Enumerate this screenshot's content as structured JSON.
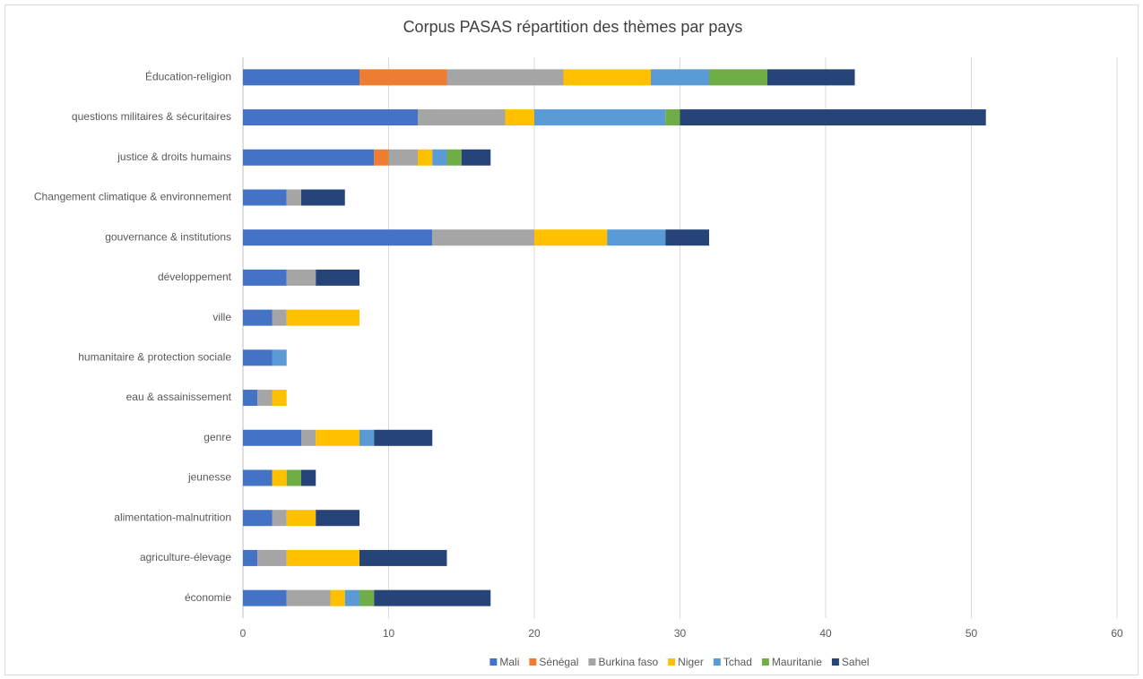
{
  "chart_data": {
    "type": "stacked-barh",
    "title": "Corpus PASAS répartition des thèmes par pays",
    "categories": [
      "Éducation-religion",
      "questions militaires & sécuritaires",
      "justice & droits humains",
      "Changement climatique & environnement",
      "gouvernance & institutions",
      "développement",
      "ville",
      "humanitaire & protection sociale",
      "eau & assainissement",
      "genre",
      "jeunesse",
      "alimentation-malnutrition",
      "agriculture-élevage",
      "économie"
    ],
    "series": [
      {
        "name": "Mali",
        "color": "#4472c4",
        "values": [
          8,
          12,
          9,
          3,
          13,
          3,
          2,
          2,
          1,
          4,
          2,
          2,
          1,
          3
        ]
      },
      {
        "name": "Sénégal",
        "color": "#ed7d31",
        "values": [
          6,
          0,
          1,
          0,
          0,
          0,
          0,
          0,
          0,
          0,
          0,
          0,
          0,
          0
        ]
      },
      {
        "name": "Burkina faso",
        "color": "#a5a5a5",
        "values": [
          8,
          6,
          2,
          1,
          7,
          2,
          1,
          0,
          1,
          1,
          0,
          1,
          2,
          3
        ]
      },
      {
        "name": "Niger",
        "color": "#ffc000",
        "values": [
          6,
          2,
          1,
          0,
          5,
          0,
          5,
          0,
          1,
          3,
          1,
          2,
          5,
          1
        ]
      },
      {
        "name": "Tchad",
        "color": "#5b9bd5",
        "values": [
          4,
          9,
          1,
          0,
          4,
          0,
          0,
          1,
          0,
          1,
          0,
          0,
          0,
          1
        ]
      },
      {
        "name": "Mauritanie",
        "color": "#70ad47",
        "values": [
          4,
          1,
          1,
          0,
          0,
          0,
          0,
          0,
          0,
          0,
          1,
          0,
          0,
          1
        ]
      },
      {
        "name": "Sahel",
        "color": "#264478",
        "values": [
          6,
          21,
          2,
          3,
          3,
          3,
          0,
          0,
          0,
          4,
          1,
          3,
          6,
          8
        ]
      }
    ],
    "xlim": [
      0,
      60
    ],
    "xticks": [
      0,
      10,
      20,
      30,
      40,
      50,
      60
    ],
    "grid": true,
    "legend": "bottom"
  }
}
